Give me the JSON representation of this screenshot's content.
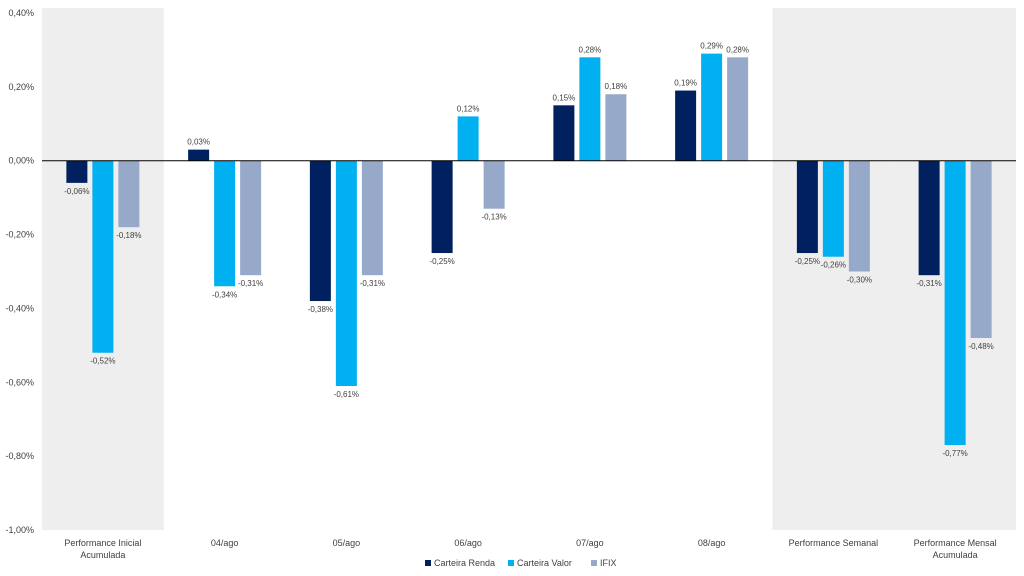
{
  "chart_data": {
    "type": "bar",
    "categories": [
      [
        "Performance Inicial",
        "Acumulada"
      ],
      [
        "04/ago"
      ],
      [
        "05/ago"
      ],
      [
        "06/ago"
      ],
      [
        "07/ago"
      ],
      [
        "08/ago"
      ],
      [
        "Performance Semanal"
      ],
      [
        "Performance Mensal",
        "Acumulada"
      ]
    ],
    "highlighted_categories": [
      0,
      6,
      7
    ],
    "series": [
      {
        "name": "Carteira Renda",
        "color": "#002060",
        "values": [
          -0.06,
          0.03,
          -0.38,
          -0.25,
          0.15,
          0.19,
          -0.25,
          -0.31
        ],
        "labels": [
          "-0,06%",
          "0,03%",
          "-0,38%",
          "-0,25%",
          "0,15%",
          "0,19%",
          "-0,25%",
          "-0,31%"
        ]
      },
      {
        "name": "Carteira Valor",
        "color": "#00B0F0",
        "values": [
          -0.52,
          -0.34,
          -0.61,
          0.12,
          0.28,
          0.29,
          -0.26,
          -0.77
        ],
        "labels": [
          "-0,52%",
          "-0,34%",
          "-0,61%",
          "0,12%",
          "0,28%",
          "0,29%",
          "-0,26%",
          "-0,77%"
        ]
      },
      {
        "name": "IFIX",
        "color": "#97A9C8",
        "values": [
          -0.18,
          -0.31,
          -0.31,
          -0.13,
          0.18,
          0.28,
          -0.3,
          -0.48
        ],
        "labels": [
          "-0,18%",
          "-0,31%",
          "-0,31%",
          "-0,13%",
          "0,18%",
          "0,28%",
          "-0,30%",
          "-0,48%"
        ]
      }
    ],
    "ylim": [
      -1.0,
      0.4
    ],
    "yticks": [
      0.4,
      0.2,
      0.0,
      -0.2,
      -0.4,
      -0.6,
      -0.8,
      -1.0
    ],
    "ytick_labels": [
      "0,40%",
      "0,20%",
      "0,00%",
      "-0,20%",
      "-0,40%",
      "-0,60%",
      "-0,80%",
      "-1,00%"
    ],
    "grid": false,
    "legend_position": "bottom-center",
    "highlight_color": "#EEEEEE",
    "axis_color": "#000000"
  }
}
